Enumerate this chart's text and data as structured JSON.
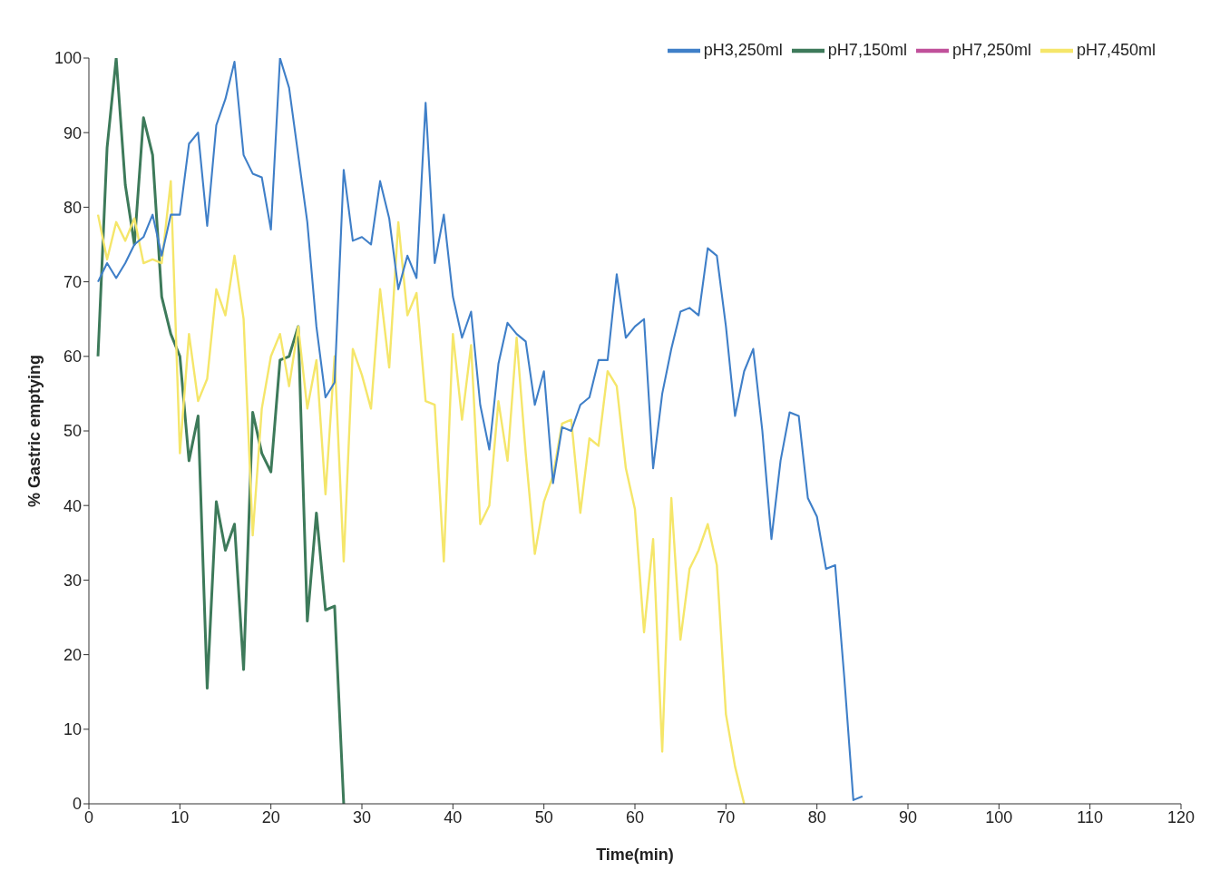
{
  "chart_data": {
    "type": "line",
    "xlabel": "Time(min)",
    "ylabel": "% Gastric emptying",
    "xlim": [
      0,
      120
    ],
    "xticks": [
      0,
      10,
      20,
      30,
      40,
      50,
      60,
      70,
      80,
      90,
      100,
      110,
      120
    ],
    "ylim": [
      0,
      100
    ],
    "yticks": [
      0,
      10,
      20,
      30,
      40,
      50,
      60,
      70,
      80,
      90,
      100
    ],
    "grid": false,
    "legend": "top right",
    "marker": "none",
    "line_style": "solid",
    "series": [
      {
        "name": "pH7,150ml",
        "color": "#3d7a5a",
        "x": [
          1,
          2,
          3,
          4,
          5,
          6,
          7,
          8,
          9,
          10,
          11,
          12,
          13,
          14,
          15,
          16,
          17,
          18,
          19,
          20,
          21,
          22,
          23,
          24,
          25,
          26,
          27,
          28
        ],
        "values": [
          60,
          88,
          100,
          83,
          75,
          92,
          87,
          68,
          63,
          60,
          46,
          52,
          15.5,
          40.5,
          34,
          37.5,
          18,
          52.5,
          47,
          44.5,
          59.5,
          60,
          64,
          24.5,
          39,
          26,
          26.5,
          0
        ]
      },
      {
        "name": "pH7,250ml",
        "color": "#c0509a"
      },
      {
        "name": "pH7,450ml",
        "color": "#f5e66a",
        "x": [
          1,
          2,
          3,
          4,
          5,
          6,
          7,
          8,
          9,
          10,
          11,
          12,
          13,
          14,
          15,
          16,
          17,
          18,
          19,
          20,
          21,
          22,
          23,
          24,
          25,
          26,
          27,
          28,
          29,
          30,
          31,
          32,
          33,
          34,
          35,
          36,
          37,
          38,
          39,
          40,
          41,
          42,
          43,
          44,
          45,
          46,
          47,
          48,
          49,
          50,
          51,
          52,
          53,
          54,
          55,
          56,
          57,
          58,
          59,
          60,
          61,
          62,
          63,
          64,
          65,
          66,
          67,
          68,
          69,
          70,
          71,
          72
        ],
        "values": [
          79,
          73,
          78,
          75.5,
          78.5,
          72.5,
          73,
          72.5,
          83.5,
          47,
          63,
          54,
          57,
          69,
          65.5,
          73.5,
          65,
          36,
          53,
          60,
          63,
          56,
          64,
          53,
          59.5,
          41.5,
          60,
          32.5,
          61,
          57.5,
          53,
          69,
          58.5,
          78,
          65.5,
          68.5,
          54,
          53.5,
          32.5,
          63,
          51.5,
          61.5,
          37.5,
          40,
          54,
          46,
          62.5,
          47,
          33.5,
          40.5,
          44,
          51,
          51.5,
          39,
          49,
          48,
          58,
          56,
          45,
          39.5,
          23,
          35.5,
          7,
          41,
          22,
          31.5,
          34,
          37.5,
          32,
          12,
          5,
          0
        ]
      },
      {
        "name": "pH3,250ml",
        "color": "#3f7fc8",
        "x": [
          1,
          2,
          3,
          4,
          5,
          6,
          7,
          8,
          9,
          10,
          11,
          12,
          13,
          14,
          15,
          16,
          17,
          18,
          19,
          20,
          21,
          22,
          23,
          24,
          25,
          26,
          27,
          28,
          29,
          30,
          31,
          32,
          33,
          34,
          35,
          36,
          37,
          38,
          39,
          40,
          41,
          42,
          43,
          44,
          45,
          46,
          47,
          48,
          49,
          50,
          51,
          52,
          53,
          54,
          55,
          56,
          57,
          58,
          59,
          60,
          61,
          62,
          63,
          64,
          65,
          66,
          67,
          68,
          69,
          70,
          71,
          72,
          73,
          74,
          75,
          76,
          77,
          78,
          79,
          80,
          81,
          82,
          83,
          84,
          85
        ],
        "values": [
          70,
          72.5,
          70.5,
          72.5,
          75,
          76,
          79,
          73.5,
          79,
          79,
          88.5,
          90,
          77.5,
          91,
          94.5,
          99.5,
          87,
          84.5,
          84,
          77,
          100,
          96,
          87,
          78,
          64,
          54.5,
          56.5,
          85,
          75.5,
          76,
          75,
          83.5,
          78.5,
          69,
          73.5,
          70.5,
          94,
          72.5,
          79,
          68,
          62.5,
          66,
          53.5,
          47.5,
          59,
          64.5,
          63,
          62,
          53.5,
          58,
          43,
          50.5,
          50,
          53.5,
          54.5,
          59.5,
          59.5,
          71,
          62.5,
          64,
          65,
          45,
          55,
          61,
          66,
          66.5,
          65.5,
          74.5,
          73.5,
          64,
          52,
          58,
          61,
          50,
          35.5,
          46,
          52.5,
          52,
          41,
          38.5,
          31.5,
          32,
          17,
          0.5,
          1
        ]
      }
    ]
  }
}
